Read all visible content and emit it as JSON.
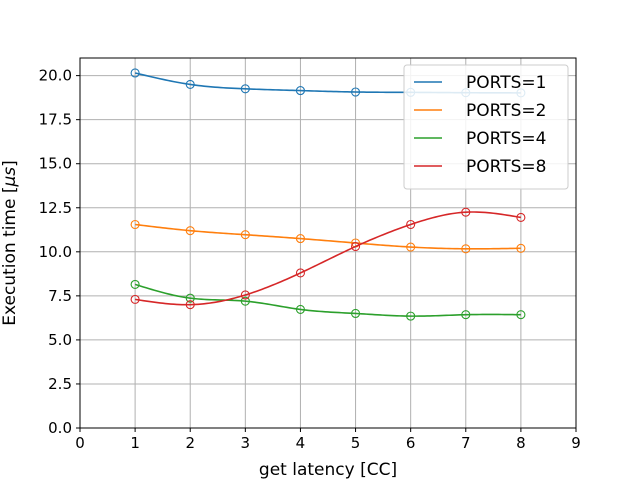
{
  "chart_data": {
    "type": "line",
    "title": "",
    "xlabel": "get latency [CC]",
    "ylabel": "Execution time [",
    "ylabel_mu": "μ",
    "ylabel_unit": "s",
    "ylabel_close": "]",
    "xlim": [
      0,
      9
    ],
    "ylim": [
      0,
      21
    ],
    "xticks": [
      0,
      1,
      2,
      3,
      4,
      5,
      6,
      7,
      8,
      9
    ],
    "xtick_labels": [
      "0",
      "1",
      "2",
      "3",
      "4",
      "5",
      "6",
      "7",
      "8",
      "9"
    ],
    "yticks": [
      0,
      2.5,
      5,
      7.5,
      10,
      12.5,
      15,
      17.5,
      20
    ],
    "ytick_labels": [
      "0.0",
      "2.5",
      "5.0",
      "7.5",
      "10.0",
      "12.5",
      "15.0",
      "17.5",
      "20.0"
    ],
    "grid": true,
    "legend_position": "top-right",
    "x": [
      1,
      2,
      3,
      4,
      5,
      6,
      7,
      8
    ],
    "series": [
      {
        "name": "PORTS=1",
        "color": "#1f77b4",
        "values": [
          20.15,
          19.5,
          19.25,
          19.15,
          19.07,
          19.05,
          19.03,
          19.02
        ]
      },
      {
        "name": "PORTS=2",
        "color": "#ff7f0e",
        "values": [
          11.55,
          11.2,
          10.97,
          10.75,
          10.5,
          10.27,
          10.17,
          10.2
        ]
      },
      {
        "name": "PORTS=4",
        "color": "#2ca02c",
        "values": [
          8.15,
          7.37,
          7.2,
          6.73,
          6.5,
          6.35,
          6.43,
          6.43
        ]
      },
      {
        "name": "PORTS=8",
        "color": "#d62728",
        "values": [
          7.3,
          7.0,
          7.55,
          8.8,
          10.3,
          11.55,
          12.25,
          11.95
        ]
      }
    ]
  }
}
